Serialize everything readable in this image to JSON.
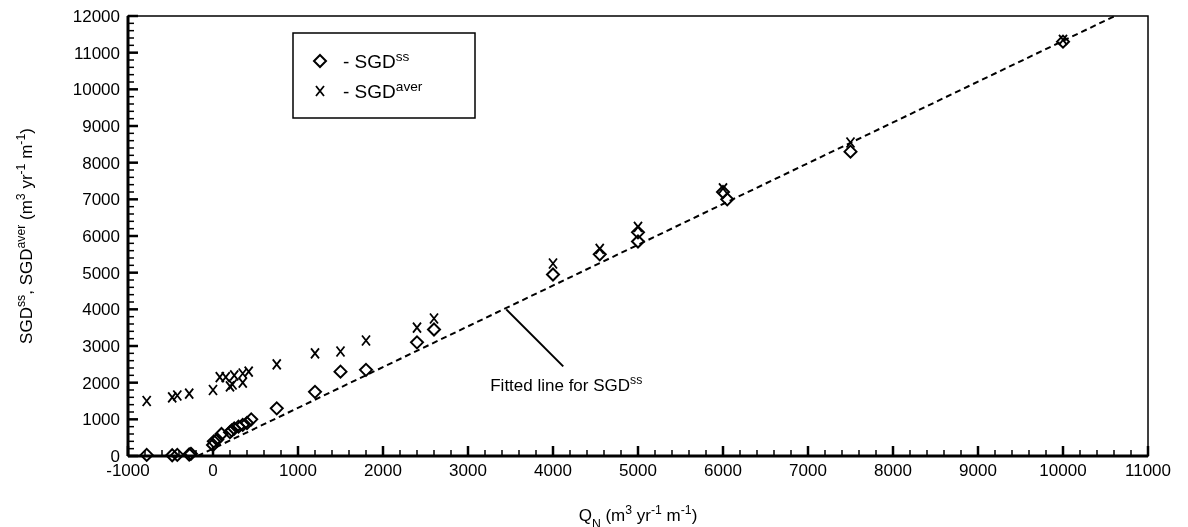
{
  "chart_data": {
    "type": "scatter",
    "xlabel": "Q$_{N}$ (m$^{3}$ yr$^{-1}$ m$^{-1}$)",
    "ylabel": "SGD$^{ss}$, SGD$^{aver}$ (m$^{3}$ yr$^{-1}$ m$^{-1}$)",
    "xlim": [
      -1000,
      11000
    ],
    "ylim": [
      0,
      12000
    ],
    "xticks": [
      -1000,
      {
        "value": -800,
        "label": null
      },
      {
        "value": -600,
        "label": null
      },
      {
        "value": -400,
        "label": null
      },
      {
        "value": -200,
        "label": null
      },
      0,
      {
        "value": 200,
        "label": null
      },
      {
        "value": 400,
        "label": null
      },
      {
        "value": 600,
        "label": null
      },
      {
        "value": 800,
        "label": null
      },
      1000,
      {
        "value": 1200,
        "label": null
      },
      {
        "value": 1400,
        "label": null
      },
      {
        "value": 1600,
        "label": null
      },
      {
        "value": 1800,
        "label": null
      },
      2000,
      {
        "value": 2200,
        "label": null
      },
      {
        "value": 2400,
        "label": null
      },
      {
        "value": 2600,
        "label": null
      },
      {
        "value": 2800,
        "label": null
      },
      3000,
      {
        "value": 3200,
        "label": null
      },
      {
        "value": 3400,
        "label": null
      },
      {
        "value": 3600,
        "label": null
      },
      {
        "value": 3800,
        "label": null
      },
      4000,
      {
        "value": 4200,
        "label": null
      },
      {
        "value": 4400,
        "label": null
      },
      {
        "value": 4600,
        "label": null
      },
      {
        "value": 4800,
        "label": null
      },
      5000,
      {
        "value": 5200,
        "label": null
      },
      {
        "value": 5400,
        "label": null
      },
      {
        "value": 5600,
        "label": null
      },
      {
        "value": 5800,
        "label": null
      },
      6000,
      {
        "value": 6200,
        "label": null
      },
      {
        "value": 6400,
        "label": null
      },
      {
        "value": 6600,
        "label": null
      },
      {
        "value": 6800,
        "label": null
      },
      7000,
      {
        "value": 7200,
        "label": null
      },
      {
        "value": 7400,
        "label": null
      },
      {
        "value": 7600,
        "label": null
      },
      {
        "value": 7800,
        "label": null
      },
      8000,
      {
        "value": 8200,
        "label": null
      },
      {
        "value": 8400,
        "label": null
      },
      {
        "value": 8600,
        "label": null
      },
      {
        "value": 8800,
        "label": null
      },
      9000,
      {
        "value": 9200,
        "label": null
      },
      {
        "value": 9400,
        "label": null
      },
      {
        "value": 9600,
        "label": null
      },
      {
        "value": 9800,
        "label": null
      },
      10000,
      {
        "value": 10200,
        "label": null
      },
      {
        "value": 10400,
        "label": null
      },
      {
        "value": 10600,
        "label": null
      },
      {
        "value": 10800,
        "label": null
      },
      11000
    ],
    "yticks": [
      0,
      {
        "value": 200,
        "label": null
      },
      {
        "value": 400,
        "label": null
      },
      {
        "value": 600,
        "label": null
      },
      {
        "value": 800,
        "label": null
      },
      1000,
      {
        "value": 1200,
        "label": null
      },
      {
        "value": 1400,
        "label": null
      },
      {
        "value": 1600,
        "label": null
      },
      {
        "value": 1800,
        "label": null
      },
      2000,
      {
        "value": 2200,
        "label": null
      },
      {
        "value": 2400,
        "label": null
      },
      {
        "value": 2600,
        "label": null
      },
      {
        "value": 2800,
        "label": null
      },
      3000,
      {
        "value": 3200,
        "label": null
      },
      {
        "value": 3400,
        "label": null
      },
      {
        "value": 3600,
        "label": null
      },
      {
        "value": 3800,
        "label": null
      },
      4000,
      {
        "value": 4200,
        "label": null
      },
      {
        "value": 4400,
        "label": null
      },
      {
        "value": 4600,
        "label": null
      },
      {
        "value": 4800,
        "label": null
      },
      5000,
      {
        "value": 5200,
        "label": null
      },
      {
        "value": 5400,
        "label": null
      },
      {
        "value": 5600,
        "label": null
      },
      {
        "value": 5800,
        "label": null
      },
      6000,
      {
        "value": 6200,
        "label": null
      },
      {
        "value": 6400,
        "label": null
      },
      {
        "value": 6600,
        "label": null
      },
      {
        "value": 6800,
        "label": null
      },
      7000,
      {
        "value": 7200,
        "label": null
      },
      {
        "value": 7400,
        "label": null
      },
      {
        "value": 7600,
        "label": null
      },
      {
        "value": 7800,
        "label": null
      },
      8000,
      {
        "value": 8200,
        "label": null
      },
      {
        "value": 8400,
        "label": null
      },
      {
        "value": 8600,
        "label": null
      },
      {
        "value": 8800,
        "label": null
      },
      9000,
      {
        "value": 9200,
        "label": null
      },
      {
        "value": 9400,
        "label": null
      },
      {
        "value": 9600,
        "label": null
      },
      {
        "value": 9800,
        "label": null
      },
      10000,
      {
        "value": 10200,
        "label": null
      },
      {
        "value": 10400,
        "label": null
      },
      {
        "value": 10600,
        "label": null
      },
      {
        "value": 10800,
        "label": null
      },
      11000,
      {
        "value": 11200,
        "label": null
      },
      {
        "value": 11400,
        "label": null
      },
      {
        "value": 11600,
        "label": null
      },
      {
        "value": 11800,
        "label": null
      },
      12000
    ],
    "legend": "top left",
    "annotations": [
      {
        "text": "Fitted line for SGD$^{ss}$",
        "x": 3450,
        "y": 4000
      }
    ],
    "series": [
      {
        "name": "- SGD$^{ss}$",
        "marker": "diamond",
        "color": "#000000",
        "x": [
          -780,
          -480,
          -420,
          -280,
          -260,
          0,
          10,
          50,
          100,
          200,
          220,
          250,
          300,
          350,
          400,
          450,
          750,
          1200,
          1500,
          1800,
          2400,
          2600,
          4000,
          4550,
          5000,
          5000,
          6000,
          6050,
          7500,
          10000
        ],
        "values": [
          30,
          20,
          30,
          40,
          60,
          300,
          400,
          450,
          600,
          650,
          700,
          750,
          800,
          850,
          900,
          1000,
          1300,
          1750,
          2300,
          2350,
          3100,
          3450,
          4950,
          5500,
          5850,
          6100,
          7200,
          7000,
          8300,
          11300
        ]
      },
      {
        "name": "- SGD$^{aver}$",
        "marker": "cross",
        "color": "#000000",
        "x": [
          -780,
          -480,
          -420,
          -280,
          0,
          80,
          150,
          200,
          230,
          250,
          350,
          350,
          420,
          750,
          1200,
          1500,
          1800,
          2400,
          2600,
          4000,
          4550,
          5000,
          6000,
          7500,
          10000
        ],
        "values": [
          1500,
          1600,
          1650,
          1700,
          1800,
          2150,
          2150,
          1900,
          1950,
          2200,
          2250,
          2000,
          2300,
          2500,
          2800,
          2850,
          3150,
          3500,
          3750,
          5250,
          5650,
          6250,
          7300,
          8550,
          11350
        ]
      },
      {
        "type": "line",
        "marker": "none",
        "line_style": "dashed",
        "color": "#000000",
        "x": [
          -180,
          10610
        ],
        "values": [
          0,
          12000
        ]
      }
    ]
  }
}
